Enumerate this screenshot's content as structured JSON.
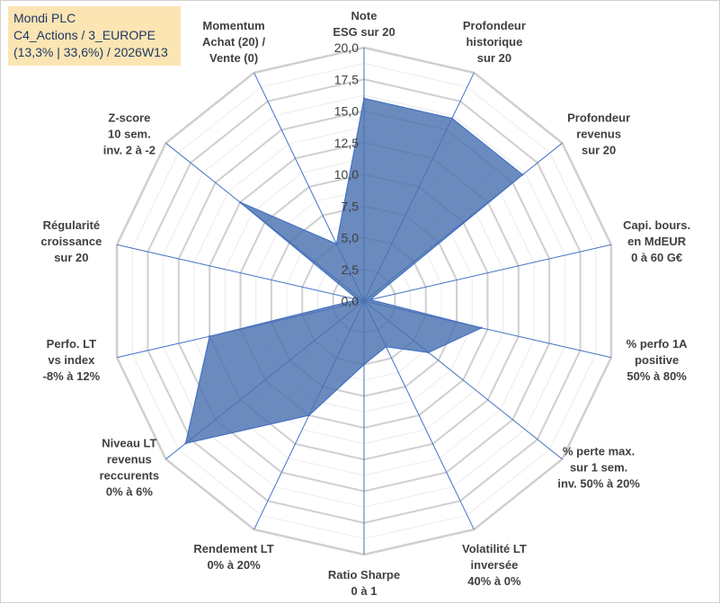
{
  "title_box": {
    "line1": "Mondi PLC",
    "line2": "C4_Actions / 3_EUROPE",
    "line3": "(13,3% | 33,6%) / 2026W13"
  },
  "chart_data": {
    "type": "radar",
    "title": "Mondi PLC",
    "rmin": 0,
    "rmax": 20,
    "ticks": [
      {
        "value": 0,
        "label": "0,0"
      },
      {
        "value": 2.5,
        "label": "2,5"
      },
      {
        "value": 5,
        "label": "5,0"
      },
      {
        "value": 7.5,
        "label": "7,5"
      },
      {
        "value": 10,
        "label": "10,0"
      },
      {
        "value": 12.5,
        "label": "12,5"
      },
      {
        "value": 15,
        "label": "15,0"
      },
      {
        "value": 17.5,
        "label": "17,5"
      },
      {
        "value": 20,
        "label": "20,0"
      }
    ],
    "axes": [
      {
        "name": "note-esg",
        "lines": [
          "Note",
          "ESG sur 20"
        ]
      },
      {
        "name": "profondeur-historique",
        "lines": [
          "Profondeur",
          "historique",
          "sur 20"
        ]
      },
      {
        "name": "profondeur-revenus",
        "lines": [
          "Profondeur",
          "revenus",
          "sur 20"
        ]
      },
      {
        "name": "capi-bours",
        "lines": [
          "Capi. bours.",
          "en MdEUR",
          "0 à 60 G€"
        ]
      },
      {
        "name": "perfo-1a",
        "lines": [
          "% perfo 1A",
          "positive",
          "50% à 80%"
        ]
      },
      {
        "name": "perte-max",
        "lines": [
          "% perte max.",
          "sur 1 sem.",
          "inv. 50% à 20%"
        ]
      },
      {
        "name": "volatilite",
        "lines": [
          "Volatilité LT",
          "inversée",
          "40% à 0%"
        ]
      },
      {
        "name": "ratio-sharpe",
        "lines": [
          "Ratio Sharpe",
          "0 à 1"
        ]
      },
      {
        "name": "rendement-lt",
        "lines": [
          "Rendement LT",
          "0% à 20%"
        ]
      },
      {
        "name": "niveau-lt-revenus",
        "lines": [
          "Niveau LT",
          "revenus",
          "reccurents",
          "0% à 6%"
        ]
      },
      {
        "name": "perfo-lt-vs-index",
        "lines": [
          "Perfo. LT",
          "vs index",
          "-8% à 12%"
        ]
      },
      {
        "name": "regularite-croissance",
        "lines": [
          "Régularité",
          "croissance",
          "sur 20"
        ]
      },
      {
        "name": "z-score",
        "lines": [
          "Z-score",
          "10 sem.",
          "inv. 2 à -2"
        ]
      },
      {
        "name": "momentum",
        "lines": [
          "Momentum",
          "Achat (20) /",
          "Vente (0)"
        ]
      }
    ],
    "series": [
      {
        "name": "Mondi PLC",
        "color": "#4472c4",
        "fill": "#4a72b0",
        "values": [
          16.0,
          16.0,
          16.0,
          0.5,
          9.5,
          6.5,
          4.0,
          5.0,
          10.0,
          18.0,
          12.5,
          0.5,
          12.5,
          5.0
        ]
      }
    ],
    "grid": true,
    "grid_color": "#d4d4d4",
    "spoke_color": "#4472c4"
  }
}
